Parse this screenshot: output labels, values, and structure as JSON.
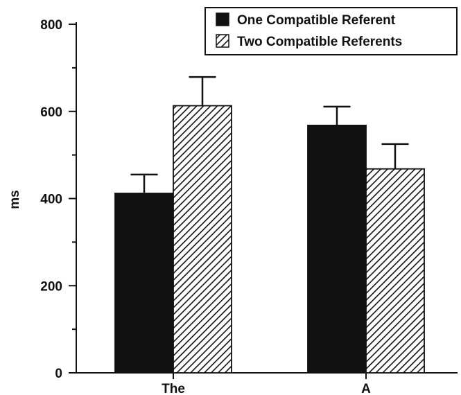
{
  "chart_data": {
    "type": "bar",
    "categories": [
      "The",
      "A"
    ],
    "series": [
      {
        "name": "One Compatible Referent",
        "values": [
          412,
          568
        ],
        "errors": [
          43,
          43
        ],
        "fill": "#111111",
        "pattern": "solid"
      },
      {
        "name": "Two Compatible Referents",
        "values": [
          613,
          468
        ],
        "errors": [
          66,
          57
        ],
        "fill": "#ffffff",
        "pattern": "diagonal-hatch"
      }
    ],
    "title": "",
    "xlabel": "",
    "ylabel": "ms",
    "ylim": [
      0,
      800
    ],
    "yticks": [
      "0",
      "200",
      "400",
      "600",
      "800"
    ],
    "grid": false,
    "legend_position": "top-right"
  }
}
